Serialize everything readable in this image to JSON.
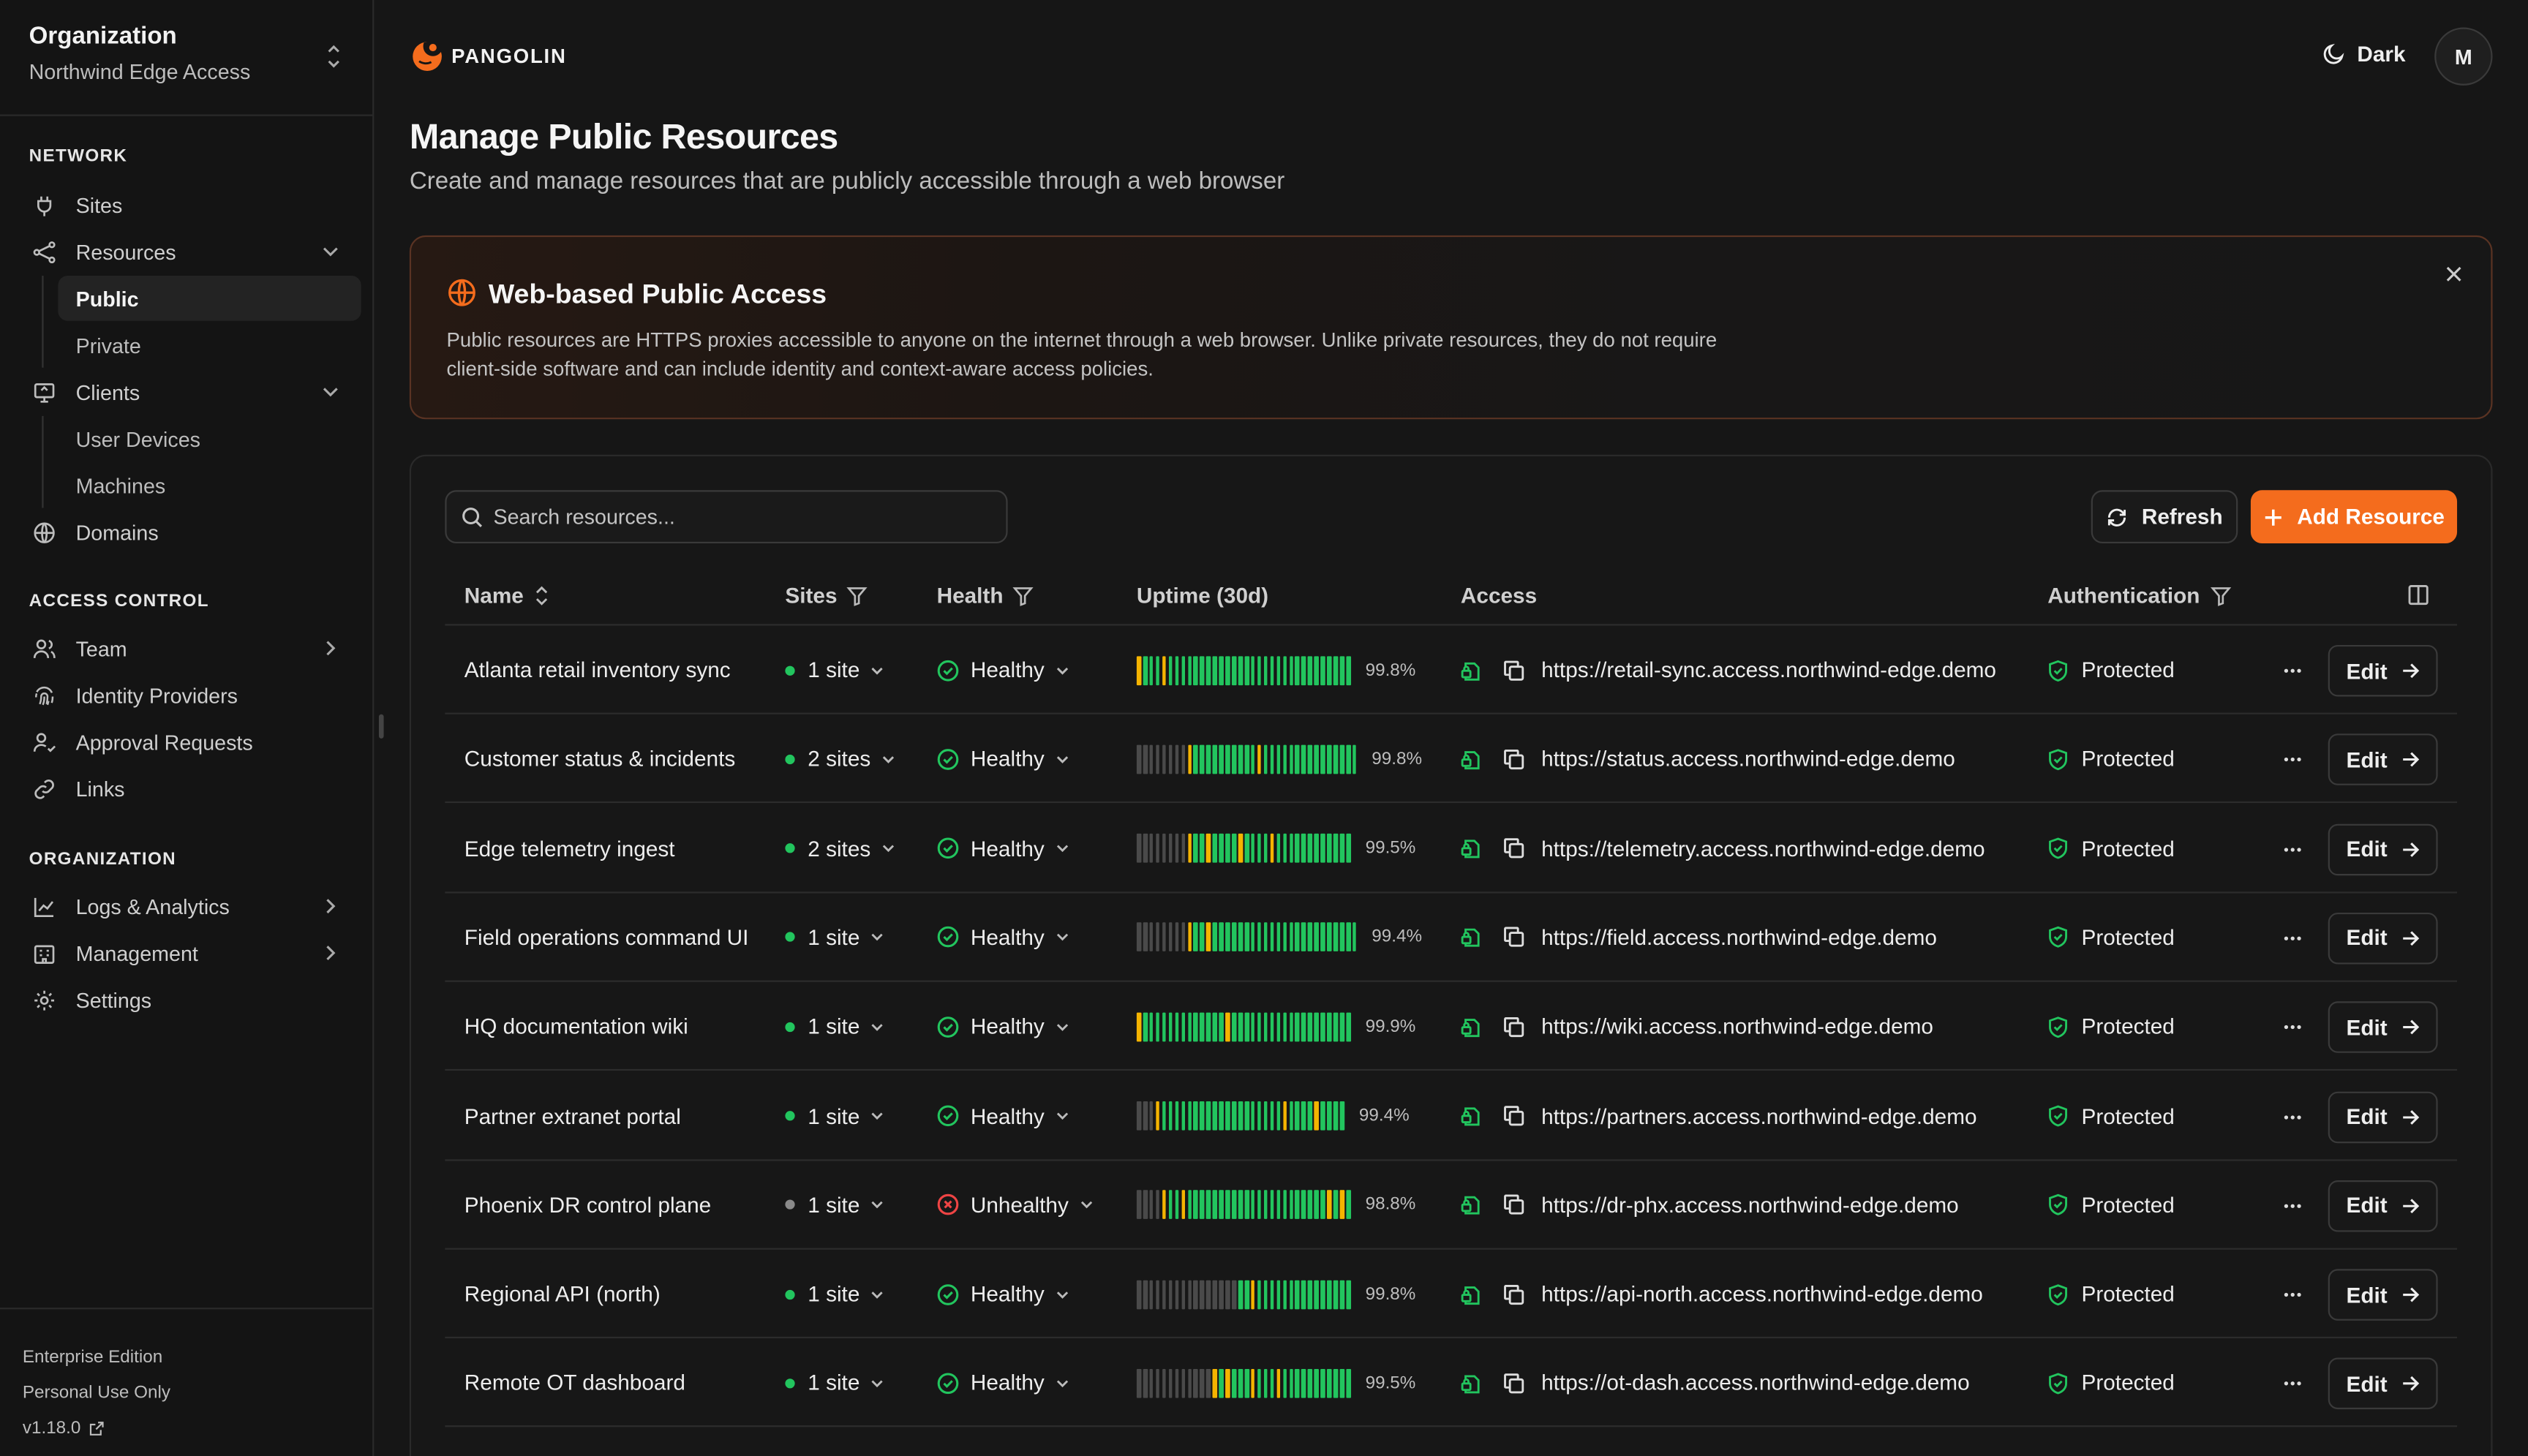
{
  "org": {
    "title": "Organization",
    "name": "Northwind Edge Access"
  },
  "nav": {
    "network_label": "NETWORK",
    "sites": "Sites",
    "resources": "Resources",
    "public": "Public",
    "private": "Private",
    "clients": "Clients",
    "user_devices": "User Devices",
    "machines": "Machines",
    "domains": "Domains",
    "access_label": "ACCESS CONTROL",
    "team": "Team",
    "idp": "Identity Providers",
    "approvals": "Approval Requests",
    "links": "Links",
    "org_label": "ORGANIZATION",
    "logs": "Logs & Analytics",
    "management": "Management",
    "settings": "Settings"
  },
  "footer": {
    "edition": "Enterprise Edition",
    "license": "Personal Use Only",
    "version": "v1.18.0"
  },
  "brand": "PANGOLIN",
  "theme_label": "Dark",
  "avatar_initial": "M",
  "page": {
    "title": "Manage Public Resources",
    "subtitle": "Create and manage resources that are publicly accessible through a web browser"
  },
  "banner": {
    "title": "Web-based Public Access",
    "text": "Public resources are HTTPS proxies accessible to anyone on the internet through a web browser. Unlike private resources, they do not require client-side software and can include identity and context-aware access policies."
  },
  "toolbar": {
    "search_placeholder": "Search resources...",
    "refresh": "Refresh",
    "add": "Add Resource"
  },
  "columns": {
    "name": "Name",
    "sites": "Sites",
    "health": "Health",
    "uptime": "Uptime (30d)",
    "access": "Access",
    "auth": "Authentication"
  },
  "colors": {
    "accent": "#f46c1d",
    "healthy": "#22c55e",
    "warn": "#f5b400",
    "down": "#ef4444",
    "idle": "#4a4a4a"
  },
  "rows": [
    {
      "name": "Atlanta retail inventory sync",
      "sites": "1 site",
      "site_online": true,
      "health": "Healthy",
      "healthy": true,
      "uptime": "99.8%",
      "uptime_pattern": "ygggyggggggggggggggggggggggggggggg",
      "url": "https://retail-sync.access.northwind-edge.demo",
      "auth": "Protected",
      "edit": "Edit"
    },
    {
      "name": "Customer status & incidents",
      "sites": "2 sites",
      "site_online": true,
      "health": "Healthy",
      "healthy": true,
      "uptime": "99.8%",
      "uptime_pattern": "iiiiiiiiyggggggggggyggggggggggggggg",
      "url": "https://status.access.northwind-edge.demo",
      "auth": "Protected",
      "edit": "Edit"
    },
    {
      "name": "Edge telemetry ingest",
      "sites": "2 sites",
      "site_online": true,
      "health": "Healthy",
      "healthy": true,
      "uptime": "99.5%",
      "uptime_pattern": "iiiiiiiiyggyggggyggggygggggggggggg",
      "url": "https://telemetry.access.northwind-edge.demo",
      "auth": "Protected",
      "edit": "Edit"
    },
    {
      "name": "Field operations command UI",
      "sites": "1 site",
      "site_online": true,
      "health": "Healthy",
      "healthy": true,
      "uptime": "99.4%",
      "uptime_pattern": "iiiiiiiiyggyggggggggggggggggggggggg",
      "url": "https://field.access.northwind-edge.demo",
      "auth": "Protected",
      "edit": "Edit"
    },
    {
      "name": "HQ documentation wiki",
      "sites": "1 site",
      "site_online": true,
      "health": "Healthy",
      "healthy": true,
      "uptime": "99.9%",
      "uptime_pattern": "ygggggggggggggyggggggggggggggggggg",
      "url": "https://wiki.access.northwind-edge.demo",
      "auth": "Protected",
      "edit": "Edit"
    },
    {
      "name": "Partner extranet portal",
      "sites": "1 site",
      "site_online": true,
      "health": "Healthy",
      "healthy": true,
      "uptime": "99.4%",
      "uptime_pattern": "iiiygggggggggggggggggggyggggygggg",
      "url": "https://partners.access.northwind-edge.demo",
      "auth": "Protected",
      "edit": "Edit"
    },
    {
      "name": "Phoenix DR control plane",
      "sites": "1 site",
      "site_online": false,
      "health": "Unhealthy",
      "healthy": false,
      "uptime": "98.8%",
      "uptime_pattern": "iiiiyggyggggggggggggggggggggggygyg",
      "url": "https://dr-phx.access.northwind-edge.demo",
      "auth": "Protected",
      "edit": "Edit"
    },
    {
      "name": "Regional API (north)",
      "sites": "1 site",
      "site_online": true,
      "health": "Healthy",
      "healthy": true,
      "uptime": "99.8%",
      "uptime_pattern": "iiiiiiiiiiiiiiiiggyggggggggggggggg",
      "url": "https://api-north.access.northwind-edge.demo",
      "auth": "Protected",
      "edit": "Edit"
    },
    {
      "name": "Remote OT dashboard",
      "sites": "1 site",
      "site_online": true,
      "health": "Healthy",
      "healthy": true,
      "uptime": "99.5%",
      "uptime_pattern": "iiiiiiiiiiiiygygggygggyggggggggggg",
      "url": "https://ot-dash.access.northwind-edge.demo",
      "auth": "Protected",
      "edit": "Edit"
    }
  ]
}
